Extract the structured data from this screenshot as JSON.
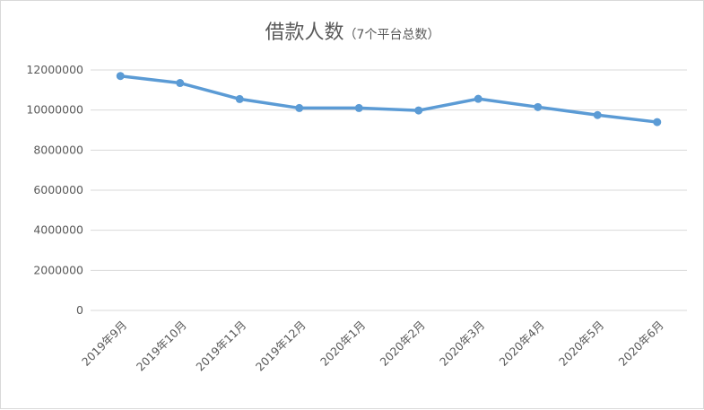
{
  "chart_data": {
    "type": "line",
    "title": "借款人数",
    "subtitle": "（7个平台总数）",
    "categories": [
      "2019年9月",
      "2019年10月",
      "2019年11月",
      "2019年12月",
      "2020年1月",
      "2020年2月",
      "2020年3月",
      "2020年4月",
      "2020年5月",
      "2020年6月"
    ],
    "series": [
      {
        "values": [
          11700000,
          11350000,
          10550000,
          10100000,
          10100000,
          9980000,
          10560000,
          10150000,
          9750000,
          9400000
        ]
      }
    ],
    "yticks": [
      "0",
      "2000000",
      "4000000",
      "6000000",
      "8000000",
      "10000000",
      "12000000"
    ],
    "ylim": [
      0,
      12000000
    ],
    "grid": true,
    "legend": "none",
    "colors": {
      "line": "#5b9bd5",
      "grid": "#d9d9d9"
    }
  }
}
